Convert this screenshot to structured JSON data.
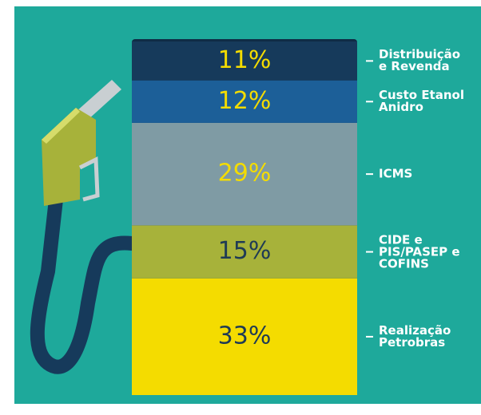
{
  "chart_data": {
    "type": "stacked-column",
    "series": [
      {
        "name": "Realização\nPetrobras",
        "color": "#f4dc00",
        "label_color": "#1f3b55",
        "values": [
          33
        ],
        "value_labels": [
          "33%"
        ]
      },
      {
        "name": "CIDE e\nPIS/PASEP e\nCOFINS",
        "color": "#a7b23a",
        "label_color": "#1f3b55",
        "values": [
          15
        ],
        "value_labels": [
          "15%"
        ]
      },
      {
        "name": "ICMS",
        "color": "#7f9ba4",
        "label_color": "#f4dc00",
        "values": [
          29
        ],
        "value_labels": [
          "29%"
        ]
      },
      {
        "name": "Custo Etanol\nAnidro",
        "color": "#1c5f98",
        "label_color": "#f4dc00",
        "values": [
          12
        ],
        "value_labels": [
          "12%"
        ]
      },
      {
        "name": "Distribuição\ne Revenda",
        "color": "#163a5b",
        "label_color": "#f4dc00",
        "values": [
          11
        ],
        "value_labels": [
          "11%"
        ]
      }
    ]
  }
}
